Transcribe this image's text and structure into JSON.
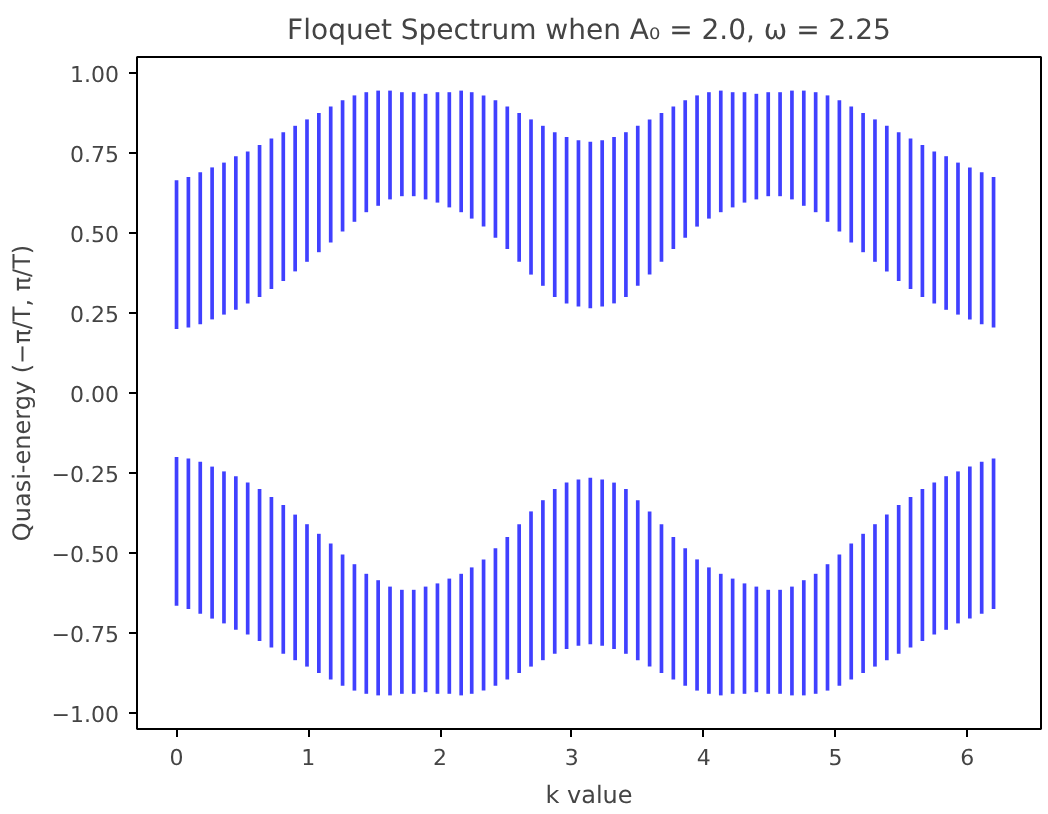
{
  "chart_data": {
    "type": "bar",
    "title": "Floquet Spectrum when A₀ = 2.0, ω = 2.25",
    "xlabel": "k value",
    "ylabel": "Quasi-energy (−π/T, π/T)",
    "x": [
      0,
      0.09,
      0.18,
      0.27,
      0.36,
      0.45,
      0.54,
      0.63,
      0.72,
      0.81,
      0.9,
      0.99,
      1.08,
      1.17,
      1.26,
      1.35,
      1.44,
      1.53,
      1.62,
      1.71,
      1.8,
      1.89,
      1.98,
      2.07,
      2.16,
      2.24,
      2.33,
      2.42,
      2.51,
      2.6,
      2.69,
      2.78,
      2.87,
      2.96,
      3.05,
      3.14,
      3.23,
      3.32,
      3.41,
      3.5,
      3.59,
      3.68,
      3.77,
      3.86,
      3.95,
      4.04,
      4.13,
      4.22,
      4.31,
      4.4,
      4.49,
      4.58,
      4.67,
      4.76,
      4.85,
      4.94,
      5.03,
      5.12,
      5.21,
      5.3,
      5.39,
      5.48,
      5.57,
      5.66,
      5.75,
      5.84,
      5.93,
      6.02,
      6.11,
      6.2
    ],
    "series": [
      {
        "color": "#0000ff",
        "base": [
          0.2,
          0.205,
          0.215,
          0.23,
          0.245,
          0.26,
          0.28,
          0.3,
          0.325,
          0.35,
          0.38,
          0.41,
          0.44,
          0.47,
          0.505,
          0.535,
          0.565,
          0.585,
          0.605,
          0.615,
          0.615,
          0.605,
          0.595,
          0.58,
          0.565,
          0.545,
          0.52,
          0.485,
          0.45,
          0.41,
          0.37,
          0.335,
          0.3,
          0.28,
          0.27,
          0.265,
          0.27,
          0.28,
          0.3,
          0.335,
          0.37,
          0.41,
          0.45,
          0.485,
          0.52,
          0.545,
          0.565,
          0.58,
          0.595,
          0.605,
          0.615,
          0.615,
          0.605,
          0.585,
          0.565,
          0.535,
          0.505,
          0.47,
          0.44,
          0.41,
          0.38,
          0.35,
          0.325,
          0.3,
          0.28,
          0.26,
          0.245,
          0.23,
          0.215,
          0.205
        ],
        "values": [
          0.465,
          0.47,
          0.475,
          0.475,
          0.475,
          0.48,
          0.475,
          0.475,
          0.47,
          0.465,
          0.455,
          0.445,
          0.435,
          0.425,
          0.41,
          0.395,
          0.375,
          0.36,
          0.34,
          0.325,
          0.325,
          0.33,
          0.345,
          0.36,
          0.38,
          0.395,
          0.41,
          0.43,
          0.445,
          0.465,
          0.485,
          0.5,
          0.515,
          0.52,
          0.52,
          0.52,
          0.52,
          0.52,
          0.515,
          0.5,
          0.485,
          0.465,
          0.445,
          0.43,
          0.41,
          0.395,
          0.38,
          0.36,
          0.345,
          0.33,
          0.325,
          0.325,
          0.34,
          0.36,
          0.375,
          0.395,
          0.41,
          0.425,
          0.435,
          0.445,
          0.455,
          0.465,
          0.47,
          0.475,
          0.475,
          0.48,
          0.475,
          0.475,
          0.475,
          0.47
        ]
      },
      {
        "color": "#0000ff",
        "base": [
          -0.665,
          -0.675,
          -0.69,
          -0.705,
          -0.72,
          -0.74,
          -0.755,
          -0.775,
          -0.795,
          -0.815,
          -0.835,
          -0.855,
          -0.875,
          -0.895,
          -0.915,
          -0.93,
          -0.94,
          -0.945,
          -0.945,
          -0.94,
          -0.94,
          -0.935,
          -0.94,
          -0.94,
          -0.945,
          -0.94,
          -0.93,
          -0.915,
          -0.895,
          -0.875,
          -0.855,
          -0.835,
          -0.815,
          -0.8,
          -0.79,
          -0.785,
          -0.79,
          -0.8,
          -0.815,
          -0.835,
          -0.855,
          -0.875,
          -0.895,
          -0.915,
          -0.93,
          -0.94,
          -0.945,
          -0.94,
          -0.94,
          -0.935,
          -0.94,
          -0.94,
          -0.945,
          -0.945,
          -0.94,
          -0.93,
          -0.915,
          -0.895,
          -0.875,
          -0.855,
          -0.835,
          -0.815,
          -0.795,
          -0.775,
          -0.755,
          -0.74,
          -0.72,
          -0.705,
          -0.69,
          -0.675
        ],
        "values": [
          0.465,
          0.47,
          0.475,
          0.475,
          0.475,
          0.48,
          0.475,
          0.475,
          0.47,
          0.465,
          0.455,
          0.445,
          0.435,
          0.425,
          0.41,
          0.395,
          0.375,
          0.36,
          0.34,
          0.325,
          0.325,
          0.33,
          0.345,
          0.36,
          0.38,
          0.395,
          0.41,
          0.43,
          0.445,
          0.465,
          0.485,
          0.5,
          0.515,
          0.52,
          0.52,
          0.52,
          0.52,
          0.52,
          0.515,
          0.5,
          0.485,
          0.465,
          0.445,
          0.43,
          0.41,
          0.395,
          0.38,
          0.36,
          0.345,
          0.33,
          0.325,
          0.325,
          0.34,
          0.36,
          0.375,
          0.395,
          0.41,
          0.425,
          0.435,
          0.445,
          0.455,
          0.465,
          0.47,
          0.475,
          0.475,
          0.48,
          0.475,
          0.475,
          0.475,
          0.47
        ]
      }
    ],
    "xlim": [
      -0.3,
      6.56
    ],
    "ylim": [
      -1.05,
      1.05
    ],
    "xticks": [
      0,
      1,
      2,
      3,
      4,
      5,
      6
    ],
    "yticks": [
      {
        "value": -1,
        "label": "−1.00"
      },
      {
        "value": -0.75,
        "label": "−0.75"
      },
      {
        "value": -0.5,
        "label": "−0.50"
      },
      {
        "value": -0.25,
        "label": "−0.25"
      },
      {
        "value": 0,
        "label": "0.00"
      },
      {
        "value": 0.25,
        "label": "0.25"
      },
      {
        "value": 0.5,
        "label": "0.50"
      },
      {
        "value": 0.75,
        "label": "0.75"
      },
      {
        "value": 1,
        "label": "1.00"
      }
    ]
  }
}
